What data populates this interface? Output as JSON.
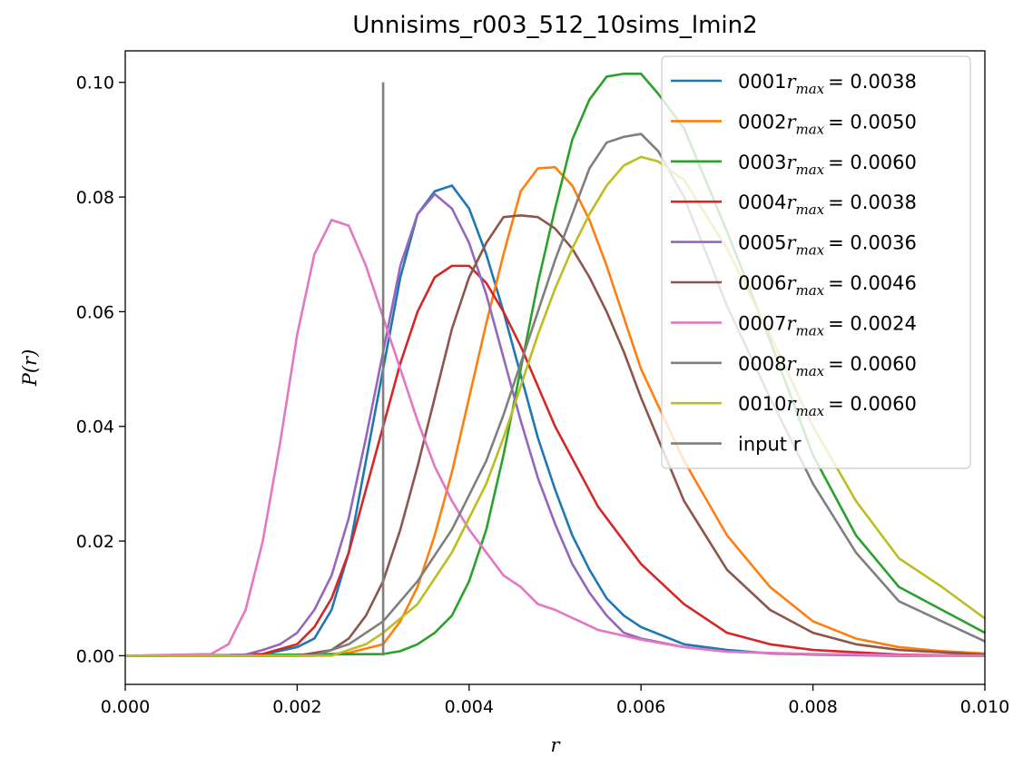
{
  "chart_data": {
    "type": "line",
    "title": "Unnisims_r003_512_10sims_lmin2",
    "xlabel": "r",
    "ylabel": "P(r)",
    "xlim": [
      0.0,
      0.01
    ],
    "ylim": [
      -0.005,
      0.1055
    ],
    "xticks": [
      0.0,
      0.002,
      0.004,
      0.006,
      0.008,
      0.01
    ],
    "xtick_labels": [
      "0.000",
      "0.002",
      "0.004",
      "0.006",
      "0.008",
      "0.010"
    ],
    "yticks": [
      0.0,
      0.02,
      0.04,
      0.06,
      0.08,
      0.1
    ],
    "ytick_labels": [
      "0.00",
      "0.02",
      "0.04",
      "0.06",
      "0.08",
      "0.10"
    ],
    "legend_position": "upper right",
    "grid": false,
    "series": [
      {
        "name": "0001",
        "rmax_label": "r_max",
        "rmax_value": "= 0.0038",
        "color": "#1f77b4",
        "x": [
          0,
          0.001,
          0.0016,
          0.002,
          0.0022,
          0.0024,
          0.0026,
          0.0028,
          0.003,
          0.0032,
          0.0034,
          0.0036,
          0.0038,
          0.004,
          0.0042,
          0.0044,
          0.0046,
          0.0048,
          0.005,
          0.0052,
          0.0054,
          0.0056,
          0.0058,
          0.006,
          0.0065,
          0.007,
          0.0075,
          0.008,
          0.009,
          0.01
        ],
        "y": [
          0,
          0,
          0.0002,
          0.0015,
          0.003,
          0.008,
          0.018,
          0.034,
          0.05,
          0.066,
          0.077,
          0.081,
          0.082,
          0.078,
          0.07,
          0.06,
          0.049,
          0.038,
          0.029,
          0.021,
          0.015,
          0.01,
          0.007,
          0.005,
          0.002,
          0.001,
          0.0004,
          0.0002,
          0,
          0
        ]
      },
      {
        "name": "0002",
        "rmax_label": "r_max",
        "rmax_value": "= 0.0050",
        "color": "#ff7f0e",
        "x": [
          0,
          0.002,
          0.0026,
          0.003,
          0.0032,
          0.0034,
          0.0036,
          0.0038,
          0.004,
          0.0042,
          0.0044,
          0.0046,
          0.0048,
          0.005,
          0.0052,
          0.0054,
          0.0056,
          0.0058,
          0.006,
          0.0065,
          0.007,
          0.0075,
          0.008,
          0.0085,
          0.009,
          0.0095,
          0.01
        ],
        "y": [
          0,
          0,
          0.0005,
          0.002,
          0.006,
          0.012,
          0.021,
          0.032,
          0.045,
          0.058,
          0.07,
          0.081,
          0.085,
          0.0852,
          0.082,
          0.076,
          0.068,
          0.059,
          0.05,
          0.034,
          0.021,
          0.012,
          0.006,
          0.003,
          0.0015,
          0.0008,
          0.0004
        ]
      },
      {
        "name": "0003",
        "rmax_label": "r_max",
        "rmax_value": "= 0.0060",
        "color": "#2ca02c",
        "x": [
          0,
          0.003,
          0.0032,
          0.0034,
          0.0036,
          0.0038,
          0.004,
          0.0042,
          0.0044,
          0.0046,
          0.0048,
          0.005,
          0.0052,
          0.0054,
          0.0056,
          0.0058,
          0.006,
          0.0062,
          0.0065,
          0.007,
          0.0075,
          0.008,
          0.0085,
          0.009,
          0.0095,
          0.01
        ],
        "y": [
          0,
          0.0003,
          0.0008,
          0.002,
          0.004,
          0.007,
          0.013,
          0.022,
          0.035,
          0.05,
          0.065,
          0.078,
          0.09,
          0.097,
          0.101,
          0.1015,
          0.1015,
          0.098,
          0.092,
          0.074,
          0.055,
          0.035,
          0.021,
          0.012,
          0.008,
          0.004
        ]
      },
      {
        "name": "0004",
        "rmax_label": "r_max",
        "rmax_value": "= 0.0038",
        "color": "#d62728",
        "x": [
          0,
          0.001,
          0.0016,
          0.002,
          0.0022,
          0.0024,
          0.0026,
          0.0028,
          0.003,
          0.0032,
          0.0034,
          0.0036,
          0.0038,
          0.004,
          0.0042,
          0.0044,
          0.0046,
          0.0048,
          0.005,
          0.0055,
          0.006,
          0.0065,
          0.007,
          0.0075,
          0.008,
          0.009,
          0.01
        ],
        "y": [
          0,
          0,
          0.0003,
          0.002,
          0.005,
          0.01,
          0.018,
          0.029,
          0.04,
          0.051,
          0.06,
          0.066,
          0.068,
          0.068,
          0.065,
          0.06,
          0.054,
          0.047,
          0.04,
          0.026,
          0.016,
          0.009,
          0.004,
          0.002,
          0.001,
          0.0002,
          0
        ]
      },
      {
        "name": "0005",
        "rmax_label": "r_max",
        "rmax_value": "= 0.0036",
        "color": "#9467bd",
        "x": [
          0,
          0.001,
          0.0014,
          0.0016,
          0.0018,
          0.002,
          0.0022,
          0.0024,
          0.0026,
          0.0028,
          0.003,
          0.0032,
          0.0034,
          0.0036,
          0.0038,
          0.004,
          0.0042,
          0.0044,
          0.0046,
          0.0048,
          0.005,
          0.0052,
          0.0054,
          0.0056,
          0.0058,
          0.006,
          0.0065,
          0.007,
          0.008,
          0.01
        ],
        "y": [
          0,
          0,
          0.0002,
          0.001,
          0.002,
          0.004,
          0.008,
          0.014,
          0.024,
          0.038,
          0.053,
          0.068,
          0.077,
          0.0805,
          0.078,
          0.072,
          0.063,
          0.052,
          0.041,
          0.031,
          0.023,
          0.016,
          0.011,
          0.007,
          0.004,
          0.003,
          0.0015,
          0.0007,
          0.0002,
          0
        ]
      },
      {
        "name": "0006",
        "rmax_label": "r_max",
        "rmax_value": "= 0.0046",
        "color": "#8c564b",
        "x": [
          0,
          0.002,
          0.0024,
          0.0026,
          0.0028,
          0.003,
          0.0032,
          0.0034,
          0.0036,
          0.0038,
          0.004,
          0.0042,
          0.0044,
          0.0046,
          0.0048,
          0.005,
          0.0052,
          0.0054,
          0.0056,
          0.0058,
          0.006,
          0.0065,
          0.007,
          0.0075,
          0.008,
          0.0085,
          0.009,
          0.01
        ],
        "y": [
          0,
          0,
          0.001,
          0.003,
          0.007,
          0.013,
          0.022,
          0.033,
          0.045,
          0.057,
          0.066,
          0.072,
          0.0765,
          0.0768,
          0.0765,
          0.0745,
          0.071,
          0.066,
          0.06,
          0.053,
          0.045,
          0.027,
          0.015,
          0.008,
          0.004,
          0.002,
          0.001,
          0.0002
        ]
      },
      {
        "name": "0007",
        "rmax_label": "r_max",
        "rmax_value": "= 0.0024",
        "color": "#e377c2",
        "x": [
          0,
          0.001,
          0.0012,
          0.0014,
          0.0016,
          0.0018,
          0.002,
          0.0022,
          0.0024,
          0.0026,
          0.0028,
          0.003,
          0.0032,
          0.0034,
          0.0036,
          0.0038,
          0.004,
          0.0042,
          0.0044,
          0.0046,
          0.0048,
          0.005,
          0.0055,
          0.006,
          0.0065,
          0.007,
          0.008,
          0.009,
          0.01
        ],
        "y": [
          0,
          0.0003,
          0.002,
          0.008,
          0.02,
          0.037,
          0.056,
          0.07,
          0.076,
          0.075,
          0.068,
          0.059,
          0.05,
          0.041,
          0.033,
          0.027,
          0.022,
          0.018,
          0.014,
          0.012,
          0.009,
          0.008,
          0.0045,
          0.0028,
          0.0015,
          0.0007,
          0.0003,
          0.0001,
          0
        ]
      },
      {
        "name": "0008",
        "rmax_label": "r_max",
        "rmax_value": "= 0.0060",
        "color": "#7f7f7f",
        "x": [
          0,
          0.0022,
          0.0026,
          0.003,
          0.0034,
          0.0038,
          0.004,
          0.0042,
          0.0044,
          0.0046,
          0.0048,
          0.005,
          0.0052,
          0.0054,
          0.0056,
          0.0058,
          0.006,
          0.0062,
          0.0065,
          0.007,
          0.0075,
          0.008,
          0.0085,
          0.009,
          0.0095,
          0.01
        ],
        "y": [
          0,
          0,
          0.002,
          0.006,
          0.013,
          0.022,
          0.028,
          0.034,
          0.042,
          0.051,
          0.06,
          0.069,
          0.077,
          0.085,
          0.0895,
          0.0905,
          0.091,
          0.088,
          0.08,
          0.061,
          0.045,
          0.03,
          0.018,
          0.0095,
          0.006,
          0.0025
        ]
      },
      {
        "name": "0010",
        "rmax_label": "r_max",
        "rmax_value": "= 0.0060",
        "color": "#bcbd22",
        "x": [
          0,
          0.0024,
          0.0028,
          0.003,
          0.0034,
          0.0038,
          0.004,
          0.0042,
          0.0044,
          0.0046,
          0.0048,
          0.005,
          0.0052,
          0.0054,
          0.0056,
          0.0058,
          0.006,
          0.0062,
          0.0065,
          0.007,
          0.0075,
          0.008,
          0.0085,
          0.009,
          0.0095,
          0.01
        ],
        "y": [
          0,
          0,
          0.002,
          0.004,
          0.009,
          0.018,
          0.024,
          0.03,
          0.038,
          0.047,
          0.056,
          0.064,
          0.071,
          0.077,
          0.082,
          0.0855,
          0.087,
          0.0862,
          0.083,
          0.071,
          0.056,
          0.04,
          0.027,
          0.017,
          0.012,
          0.0065
        ]
      }
    ],
    "vertical_line": {
      "name": "input r",
      "x": 0.003,
      "y_from": 0.0,
      "y_to": 0.1,
      "color": "#7f7f7f"
    }
  }
}
